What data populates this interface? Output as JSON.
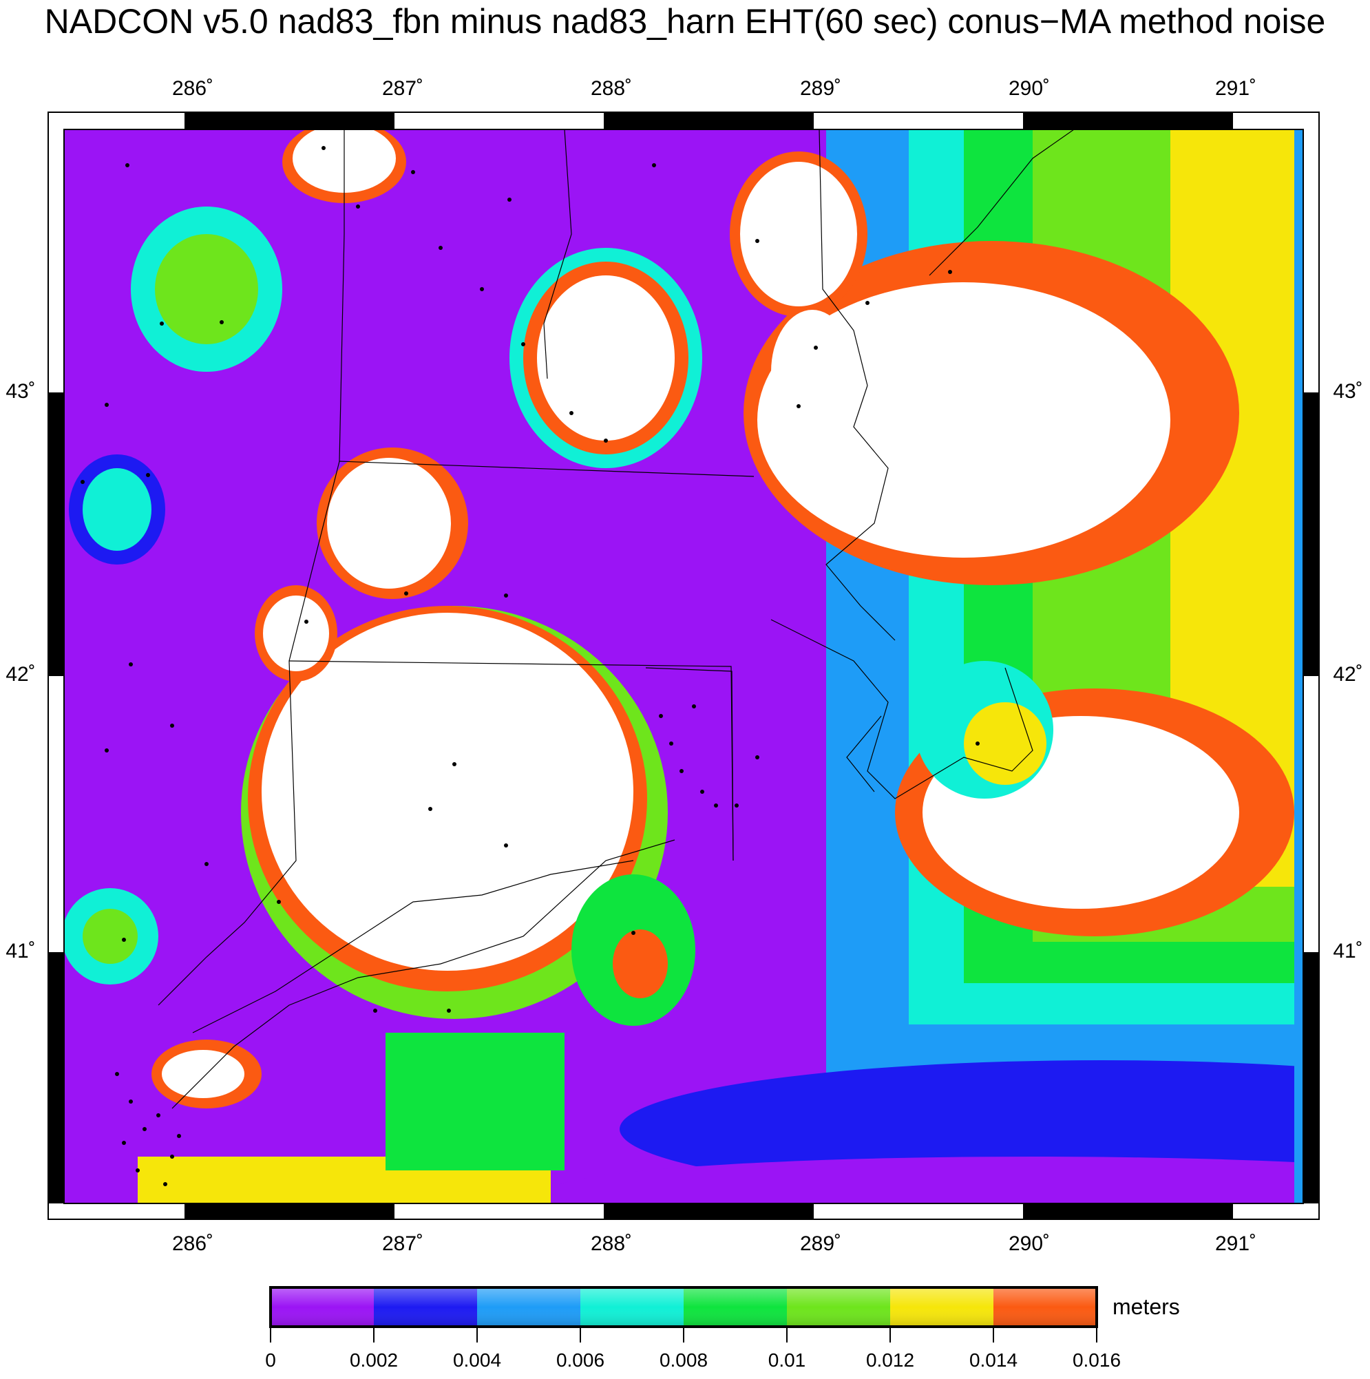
{
  "title": "NADCON v5.0 nad83_fbn minus nad83_harn EHT(60 sec) conus−MA method noise",
  "lon_ticks": [
    "286˚",
    "287˚",
    "288˚",
    "289˚",
    "290˚",
    "291˚"
  ],
  "lat_ticks": [
    "43˚",
    "42˚",
    "41˚"
  ],
  "colorbar": {
    "unit": "meters",
    "labels": [
      "0",
      "0.002",
      "0.004",
      "0.006",
      "0.008",
      "0.01",
      "0.012",
      "0.014",
      "0.016"
    ],
    "colors": [
      "#9b14f5",
      "#1d1af2",
      "#1e9cf7",
      "#10f0d6",
      "#0ee43e",
      "#6ee51c",
      "#f6e60a",
      "#fb5a12"
    ]
  },
  "map": {
    "lon_range": [
      285.42,
      291.33
    ],
    "lat_range": [
      40.0,
      43.9
    ],
    "background_color": "#ffffff"
  }
}
